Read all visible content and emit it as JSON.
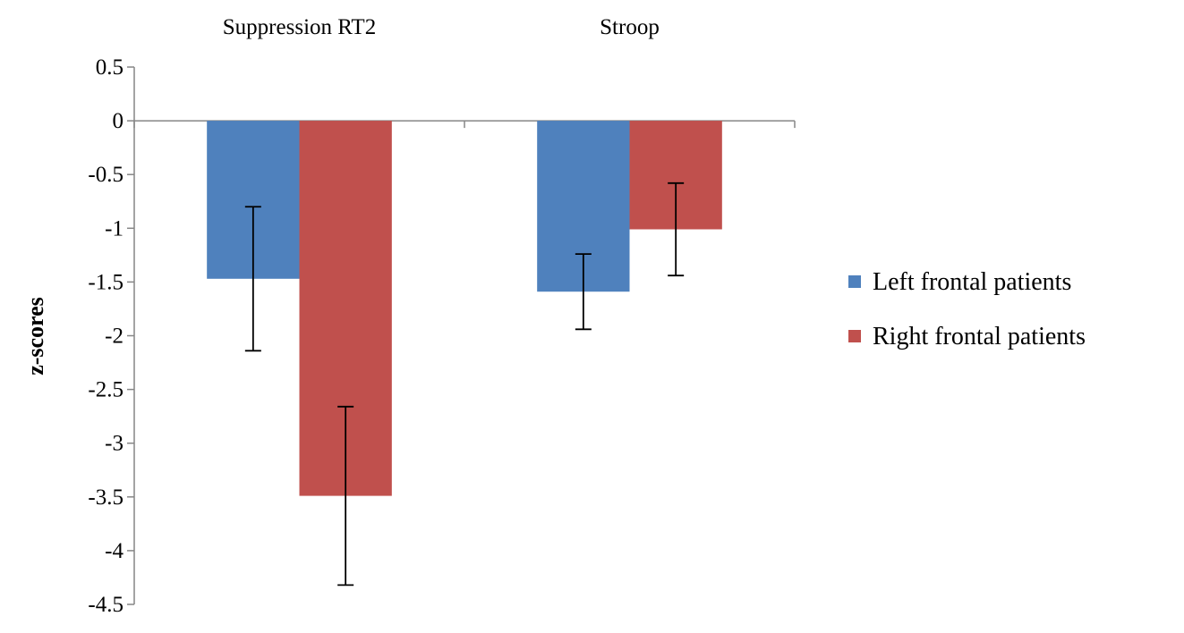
{
  "chart_data": {
    "type": "bar",
    "title": "",
    "xlabel": "",
    "ylabel": "z-scores",
    "categories": [
      "Suppression RT2",
      "Stroop"
    ],
    "category_axis_position": "top",
    "series": [
      {
        "name": "Left frontal patients",
        "color": "#4f81bd",
        "values": [
          -1.47,
          -1.59
        ],
        "error": [
          0.67,
          0.35
        ]
      },
      {
        "name": "Right frontal patients",
        "color": "#c0504d",
        "values": [
          -3.49,
          -1.01
        ],
        "error": [
          0.83,
          0.43
        ]
      }
    ],
    "ylim": [
      -4.5,
      0.5
    ],
    "yticks": [
      "0.5",
      "0",
      "-0.5",
      "-1",
      "-1.5",
      "-2",
      "-2.5",
      "-3",
      "-3.5",
      "-4",
      "-4.5"
    ],
    "grid": false,
    "legend_position": "right"
  }
}
